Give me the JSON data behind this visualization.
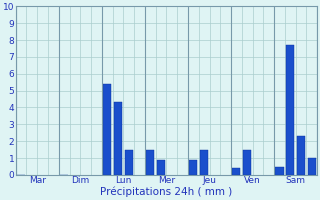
{
  "background_color": "#dff4f4",
  "grid_color": "#aacece",
  "bar_color": "#1a4fcc",
  "bar_edge_color": "#0a2f99",
  "xlabel": "Précipitations 24h ( mm )",
  "ylim": [
    0,
    10
  ],
  "yticks": [
    0,
    1,
    2,
    3,
    4,
    5,
    6,
    7,
    8,
    9,
    10
  ],
  "day_labels": [
    "Mar",
    "Dim",
    "Lun",
    "Mer",
    "Jeu",
    "Ven",
    "Sam"
  ],
  "bars": [
    {
      "day": 0,
      "sub": 0,
      "val": 0.0
    },
    {
      "day": 1,
      "sub": 0,
      "val": 0.0
    },
    {
      "day": 2,
      "sub": 0,
      "val": 5.4
    },
    {
      "day": 2,
      "sub": 1,
      "val": 4.3
    },
    {
      "day": 2,
      "sub": 2,
      "val": 1.5
    },
    {
      "day": 3,
      "sub": 0,
      "val": 1.5
    },
    {
      "day": 3,
      "sub": 1,
      "val": 0.9
    },
    {
      "day": 4,
      "sub": 0,
      "val": 0.9
    },
    {
      "day": 4,
      "sub": 1,
      "val": 1.5
    },
    {
      "day": 5,
      "sub": 0,
      "val": 0.4
    },
    {
      "day": 5,
      "sub": 1,
      "val": 1.5
    },
    {
      "day": 6,
      "sub": 0,
      "val": 0.5
    },
    {
      "day": 6,
      "sub": 1,
      "val": 7.7
    },
    {
      "day": 6,
      "sub": 2,
      "val": 2.3
    },
    {
      "day": 6,
      "sub": 3,
      "val": 1.0
    }
  ],
  "n_days": 7,
  "bars_per_day": 4,
  "tick_fontsize": 6.5,
  "label_fontsize": 7.5
}
